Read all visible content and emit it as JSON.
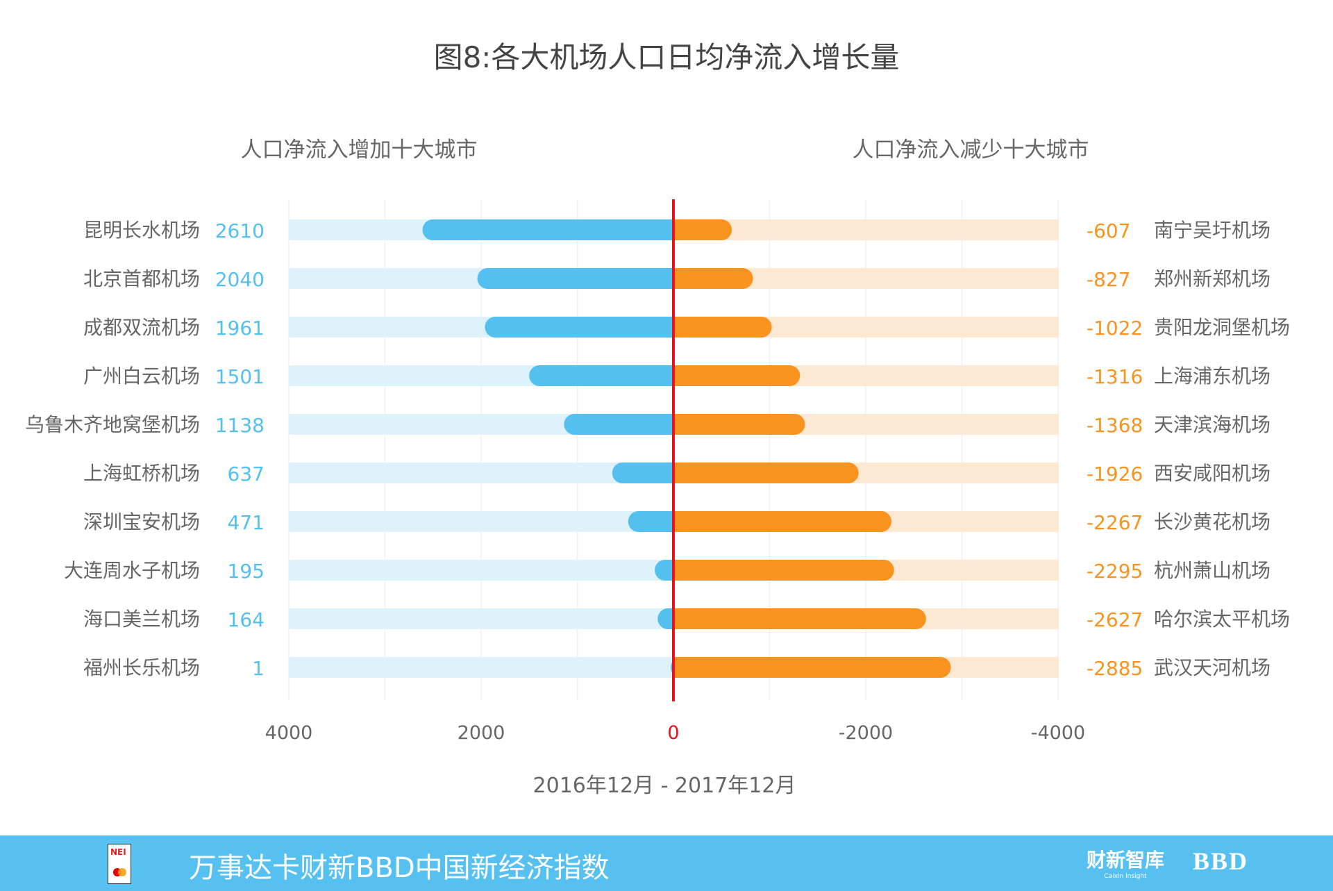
{
  "chart_data": {
    "type": "bar",
    "title": "图8:各大机场人口日均净流入增长量",
    "xlabel": "2016年12月 - 2017年12月",
    "xlim": [
      4000,
      -4000
    ],
    "x_ticks": [
      "4000",
      "2000",
      "0",
      "-2000",
      "-4000"
    ],
    "grid": true,
    "colors": {
      "increase": "#53c0f0",
      "increase_track": "#ddf2fb",
      "decrease": "#f7931e",
      "decrease_track": "#fde8d3",
      "zero_line": "#e8141b",
      "text": "#666666"
    },
    "series": [
      {
        "name": "人口净流入增加十大城市",
        "categories": [
          "昆明长水机场",
          "北京首都机场",
          "成都双流机场",
          "广州白云机场",
          "乌鲁木齐地窝堡机场",
          "上海虹桥机场",
          "深圳宝安机场",
          "大连周水子机场",
          "海口美兰机场",
          "福州长乐机场"
        ],
        "values": [
          2610,
          2040,
          1961,
          1501,
          1138,
          637,
          471,
          195,
          164,
          1
        ]
      },
      {
        "name": "人口净流入减少十大城市",
        "categories": [
          "南宁吴圩机场",
          "郑州新郑机场",
          "贵阳龙洞堡机场",
          "上海浦东机场",
          "天津滨海机场",
          "西安咸阳机场",
          "长沙黄花机场",
          "杭州萧山机场",
          "哈尔滨太平机场",
          "武汉天河机场"
        ],
        "values": [
          -607,
          -827,
          -1022,
          -1316,
          -1368,
          -1926,
          -2267,
          -2295,
          -2627,
          -2885
        ]
      }
    ]
  },
  "banner": {
    "title": "万事达卡财新BBD中国新经济指数",
    "logo_left": "NEI",
    "logo_caixin": "财新智库",
    "logo_caixin_sub": "Caixin Insight",
    "logo_bbd": "BBD"
  }
}
